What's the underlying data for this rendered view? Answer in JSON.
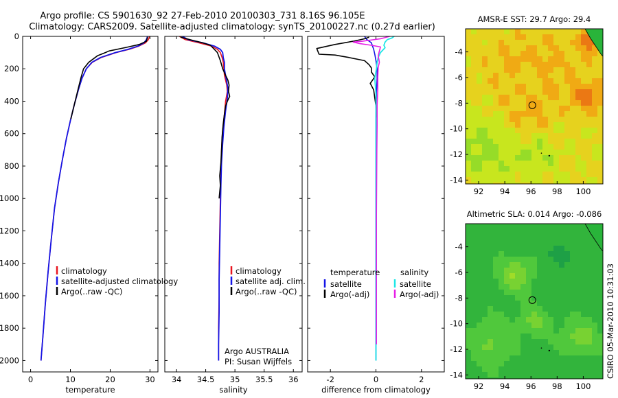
{
  "header": {
    "line1": "Argo profile: CS 5901630_92 27-Feb-2010 20100303_731 8.16S 96.105E",
    "line2": "Climatology: CARS2009. Satellite-adjusted climatology: synTS_20100227.nc (0.27d earlier)"
  },
  "side_stamp": "CSIRO 05-Mar-2010 10:31:03",
  "colors": {
    "red": "#e8141e",
    "blue": "#1414e6",
    "black": "#000000",
    "cyan": "#1ee6e6",
    "magenta": "#e61ee6"
  },
  "chart_data": [
    {
      "type": "line",
      "id": "temperature",
      "title": "",
      "xlabel": "temperature",
      "ylabel": "",
      "xlim": [
        -2,
        32
      ],
      "ylim": [
        2070,
        0
      ],
      "xticks": [
        0,
        10,
        20,
        30
      ],
      "xticklabels": [
        "0",
        "10",
        "20",
        "30"
      ],
      "yticks": [
        0,
        200,
        400,
        600,
        800,
        1000,
        1200,
        1400,
        1600,
        1800,
        2000
      ],
      "yticklabels": [
        "0",
        "200",
        "400",
        "600",
        "800",
        "1000",
        "1200",
        "1400",
        "1600",
        "1800",
        "2000"
      ],
      "legend": [
        "climatology",
        "satellite-adjusted climatology",
        "Argo(..raw -QC)"
      ],
      "series": [
        {
          "name": "climatology",
          "color": "red",
          "width": 1.6,
          "points": [
            [
              29.9,
              0
            ],
            [
              29.6,
              20
            ],
            [
              28.9,
              40
            ],
            [
              27.2,
              60
            ],
            [
              24.8,
              80
            ],
            [
              21.5,
              100
            ],
            [
              17.8,
              130
            ],
            [
              15.5,
              160
            ],
            [
              14.0,
              200
            ],
            [
              12.9,
              260
            ],
            [
              12.0,
              330
            ],
            [
              11.0,
              420
            ],
            [
              10.0,
              520
            ],
            [
              9.0,
              630
            ],
            [
              8.0,
              760
            ],
            [
              7.0,
              900
            ],
            [
              6.0,
              1060
            ],
            [
              5.2,
              1250
            ],
            [
              4.4,
              1450
            ],
            [
              3.7,
              1650
            ],
            [
              3.1,
              1850
            ],
            [
              2.6,
              2000
            ]
          ]
        },
        {
          "name": "satellite-adjusted climatology",
          "color": "blue",
          "width": 1.8,
          "points": [
            [
              29.4,
              0
            ],
            [
              29.1,
              20
            ],
            [
              28.5,
              40
            ],
            [
              27.0,
              60
            ],
            [
              24.5,
              80
            ],
            [
              21.3,
              100
            ],
            [
              17.6,
              130
            ],
            [
              15.4,
              160
            ],
            [
              14.0,
              200
            ],
            [
              12.9,
              260
            ],
            [
              12.0,
              330
            ],
            [
              11.0,
              420
            ],
            [
              10.0,
              520
            ],
            [
              9.0,
              630
            ],
            [
              8.0,
              760
            ],
            [
              7.0,
              900
            ],
            [
              6.0,
              1060
            ],
            [
              5.2,
              1250
            ],
            [
              4.4,
              1450
            ],
            [
              3.7,
              1650
            ],
            [
              3.1,
              1850
            ],
            [
              2.6,
              2000
            ]
          ]
        },
        {
          "name": "Argo(..raw -QC)",
          "color": "black",
          "width": 1.6,
          "points": [
            [
              29.4,
              5
            ],
            [
              29.1,
              30
            ],
            [
              27.3,
              50
            ],
            [
              24.0,
              68
            ],
            [
              19.7,
              90
            ],
            [
              18.8,
              100
            ],
            [
              16.8,
              120
            ],
            [
              14.6,
              160
            ],
            [
              13.3,
              200
            ],
            [
              12.6,
              260
            ],
            [
              11.9,
              330
            ],
            [
              11.0,
              420
            ],
            [
              10.1,
              510
            ]
          ]
        }
      ]
    },
    {
      "type": "line",
      "id": "salinity",
      "title": "",
      "xlabel": "salinity",
      "ylabel": "",
      "xlim": [
        33.8,
        36.15
      ],
      "ylim": [
        2070,
        0
      ],
      "xticks": [
        34,
        34.5,
        35,
        35.5,
        36
      ],
      "xticklabels": [
        "34",
        "34.5",
        "35",
        "35.5",
        "36"
      ],
      "yticks": [
        0,
        200,
        400,
        600,
        800,
        1000,
        1200,
        1400,
        1600,
        1800,
        2000
      ],
      "yticklabels": [],
      "legend": [
        "climatology",
        "satellite adj. clim.",
        "Argo(..raw -QC)"
      ],
      "annotation": [
        "Argo AUSTRALIA",
        "PI: Susan Wijffels"
      ],
      "series": [
        {
          "name": "climatology",
          "color": "red",
          "width": 1.6,
          "points": [
            [
              34.05,
              0
            ],
            [
              34.15,
              20
            ],
            [
              34.38,
              40
            ],
            [
              34.6,
              60
            ],
            [
              34.7,
              80
            ],
            [
              34.75,
              100
            ],
            [
              34.78,
              130
            ],
            [
              34.8,
              160
            ],
            [
              34.81,
              200
            ],
            [
              34.82,
              240
            ],
            [
              34.86,
              300
            ],
            [
              34.87,
              340
            ],
            [
              34.84,
              400
            ],
            [
              34.82,
              480
            ],
            [
              34.79,
              580
            ],
            [
              34.77,
              700
            ],
            [
              34.76,
              850
            ],
            [
              34.75,
              1000
            ],
            [
              34.74,
              1200
            ],
            [
              34.73,
              1400
            ],
            [
              34.73,
              1600
            ],
            [
              34.72,
              1800
            ],
            [
              34.72,
              2000
            ]
          ]
        },
        {
          "name": "satellite adj. clim.",
          "color": "blue",
          "width": 1.8,
          "points": [
            [
              34.1,
              0
            ],
            [
              34.2,
              20
            ],
            [
              34.45,
              40
            ],
            [
              34.65,
              60
            ],
            [
              34.75,
              80
            ],
            [
              34.79,
              100
            ],
            [
              34.8,
              130
            ],
            [
              34.82,
              160
            ],
            [
              34.82,
              200
            ],
            [
              34.84,
              240
            ],
            [
              34.86,
              280
            ],
            [
              34.88,
              320
            ],
            [
              34.87,
              380
            ],
            [
              34.84,
              460
            ],
            [
              34.81,
              560
            ],
            [
              34.79,
              660
            ],
            [
              34.77,
              780
            ],
            [
              34.76,
              920
            ],
            [
              34.75,
              1100
            ],
            [
              34.74,
              1300
            ],
            [
              34.73,
              1500
            ],
            [
              34.73,
              1700
            ],
            [
              34.72,
              1900
            ],
            [
              34.72,
              2000
            ]
          ]
        },
        {
          "name": "Argo(..raw -QC)",
          "color": "black",
          "width": 1.6,
          "points": [
            [
              34.07,
              5
            ],
            [
              34.28,
              25
            ],
            [
              34.45,
              40
            ],
            [
              34.58,
              55
            ],
            [
              34.62,
              70
            ],
            [
              34.7,
              100
            ],
            [
              34.75,
              150
            ],
            [
              34.79,
              200
            ],
            [
              34.84,
              240
            ],
            [
              34.88,
              270
            ],
            [
              34.9,
              300
            ],
            [
              34.89,
              340
            ],
            [
              34.91,
              370
            ],
            [
              34.87,
              400
            ],
            [
              34.84,
              430
            ],
            [
              34.82,
              480
            ],
            [
              34.8,
              540
            ],
            [
              34.78,
              620
            ],
            [
              34.77,
              700
            ],
            [
              34.76,
              780
            ],
            [
              34.74,
              860
            ],
            [
              34.75,
              920
            ],
            [
              34.73,
              1000
            ]
          ]
        }
      ]
    },
    {
      "type": "line",
      "id": "difference",
      "title": "",
      "xlabel": "difference from climatology",
      "ylabel": "",
      "xlim": [
        -3.0,
        3.0
      ],
      "ylim": [
        2070,
        0
      ],
      "xticks": [
        -2,
        0,
        2
      ],
      "xticklabels": [
        "-2",
        "0",
        "2"
      ],
      "yticks": [
        0,
        200,
        400,
        600,
        800,
        1000,
        1200,
        1400,
        1600,
        1800,
        2000
      ],
      "yticklabels": [],
      "legend_left_header": "temperature",
      "legend_left": [
        "satellite",
        "Argo(-adj)"
      ],
      "legend_right_header": "salinity",
      "legend_right": [
        "satellite",
        "Argo(-adj)"
      ],
      "series": [
        {
          "name": "satellite (temperature)",
          "color": "blue",
          "width": 1.6,
          "points": [
            [
              -0.5,
              0
            ],
            [
              -0.4,
              20
            ],
            [
              -0.2,
              40
            ],
            [
              -0.15,
              60
            ],
            [
              -0.1,
              80
            ],
            [
              -0.05,
              110
            ],
            [
              0.0,
              150
            ],
            [
              0.05,
              200
            ],
            [
              0.05,
              260
            ],
            [
              0.02,
              350
            ],
            [
              0.0,
              500
            ],
            [
              0.0,
              700
            ],
            [
              0.0,
              900
            ],
            [
              0.0,
              1200
            ],
            [
              0.0,
              1600
            ],
            [
              0.0,
              2000
            ]
          ]
        },
        {
          "name": "Argo(-adj) (temperature)",
          "color": "black",
          "width": 1.6,
          "points": [
            [
              -0.3,
              5
            ],
            [
              -0.5,
              15
            ],
            [
              -1.0,
              30
            ],
            [
              -1.8,
              50
            ],
            [
              -2.6,
              75
            ],
            [
              -2.5,
              110
            ],
            [
              -1.8,
              115
            ],
            [
              -1.2,
              130
            ],
            [
              -0.5,
              150
            ],
            [
              -0.3,
              175
            ],
            [
              -0.2,
              195
            ],
            [
              -0.2,
              220
            ],
            [
              -0.05,
              250
            ],
            [
              -0.25,
              290
            ],
            [
              -0.1,
              330
            ],
            [
              -0.05,
              380
            ],
            [
              0.0,
              430
            ],
            [
              0.03,
              500
            ]
          ]
        },
        {
          "name": "satellite (salinity)",
          "color": "cyan",
          "width": 1.8,
          "points": [
            [
              0.8,
              0
            ],
            [
              0.7,
              10
            ],
            [
              0.5,
              20
            ],
            [
              0.4,
              35
            ],
            [
              0.35,
              55
            ],
            [
              0.4,
              70
            ],
            [
              0.2,
              100
            ],
            [
              0.1,
              130
            ],
            [
              0.05,
              160
            ],
            [
              0.02,
              200
            ],
            [
              -0.05,
              260
            ],
            [
              0.0,
              350
            ],
            [
              0.0,
              500
            ],
            [
              0.0,
              700
            ],
            [
              0.0,
              900
            ],
            [
              0.0,
              1200
            ],
            [
              0.0,
              1600
            ],
            [
              0.0,
              2000
            ]
          ]
        },
        {
          "name": "Argo(-adj) (salinity)",
          "color": "magenta",
          "width": 1.6,
          "points": [
            [
              0.6,
              0
            ],
            [
              0.2,
              15
            ],
            [
              -0.6,
              30
            ],
            [
              -1.0,
              35
            ],
            [
              -0.7,
              45
            ],
            [
              -0.2,
              55
            ],
            [
              0.2,
              65
            ],
            [
              0.15,
              90
            ],
            [
              0.1,
              120
            ],
            [
              0.15,
              160
            ],
            [
              0.1,
              190
            ],
            [
              0.08,
              250
            ],
            [
              0.08,
              330
            ],
            [
              0.05,
              420
            ],
            [
              0.05,
              550
            ],
            [
              0.04,
              700
            ],
            [
              0.03,
              900
            ],
            [
              0.02,
              1100
            ],
            [
              0.02,
              1300
            ],
            [
              0.02,
              1500
            ],
            [
              0.02,
              1700
            ],
            [
              0.02,
              1900
            ]
          ]
        }
      ]
    },
    {
      "type": "heatmap",
      "id": "sst-map",
      "title": "AMSR-E SST: 29.7 Argo: 29.4",
      "xlim": [
        91,
        101.5
      ],
      "ylim": [
        -14.3,
        -2.2
      ],
      "xticks": [
        92,
        94,
        96,
        98,
        100
      ],
      "xticklabels": [
        "92",
        "94",
        "96",
        "98",
        "100"
      ],
      "yticks": [
        -4,
        -6,
        -8,
        -10,
        -12,
        -14
      ],
      "yticklabels": [
        "-4",
        "-6",
        "-8",
        "-10",
        "-12",
        "-14"
      ],
      "marker": {
        "lon": 96.105,
        "lat": -8.16
      },
      "colormap": [
        "#50c83c",
        "#96dc28",
        "#c8e61e",
        "#e6d21e",
        "#f0aa14",
        "#eb7814",
        "#d23c14",
        "#961e1e"
      ]
    },
    {
      "type": "heatmap",
      "id": "sla-map",
      "title": "Altimetric SLA: 0.014 Argo: -0.086",
      "xlim": [
        91,
        101.5
      ],
      "ylim": [
        -14.3,
        -2.2
      ],
      "xticks": [
        92,
        94,
        96,
        98,
        100
      ],
      "xticklabels": [
        "92",
        "94",
        "96",
        "98",
        "100"
      ],
      "yticks": [
        -4,
        -6,
        -8,
        -10,
        -12,
        -14
      ],
      "yticklabels": [
        "-4",
        "-6",
        "-8",
        "-10",
        "-12",
        "-14"
      ],
      "marker": {
        "lon": 96.105,
        "lat": -8.16
      },
      "colormap": [
        "#1ea046",
        "#32b43c",
        "#50c83c",
        "#78d232",
        "#a0dc28",
        "#c3e61e"
      ]
    }
  ]
}
